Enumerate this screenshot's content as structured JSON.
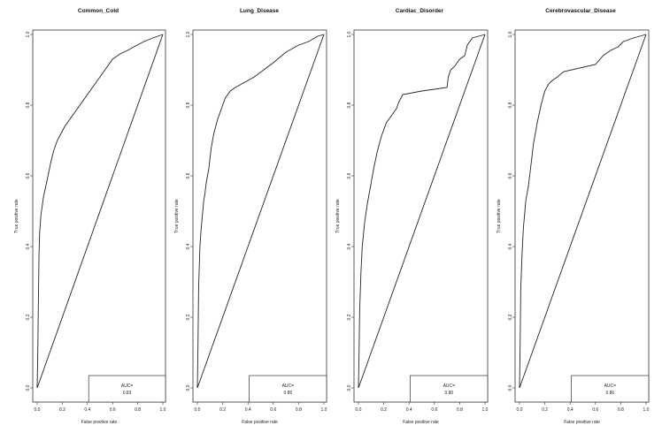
{
  "chart_data": [
    {
      "type": "line",
      "title": "Common_Cold",
      "xlabel": "False positive rate",
      "ylabel": "True positive rate",
      "xlim": [
        0,
        1
      ],
      "ylim": [
        0,
        1
      ],
      "xticks": [
        "0.0",
        "0.2",
        "0.4",
        "0.6",
        "0.8",
        "1.0"
      ],
      "yticks": [
        "0.0",
        "0.2",
        "0.4",
        "0.6",
        "0.8",
        "1.0"
      ],
      "legend": {
        "label": "AUC=",
        "value": "0.83",
        "position": "bottom-right"
      },
      "series": [
        {
          "values": [
            [
              0,
              0
            ],
            [
              0.005,
              0.1
            ],
            [
              0.01,
              0.25
            ],
            [
              0.015,
              0.38
            ],
            [
              0.02,
              0.44
            ],
            [
              0.03,
              0.49
            ],
            [
              0.05,
              0.54
            ],
            [
              0.08,
              0.59
            ],
            [
              0.11,
              0.64
            ],
            [
              0.13,
              0.67
            ],
            [
              0.16,
              0.7
            ],
            [
              0.19,
              0.72
            ],
            [
              0.22,
              0.74
            ],
            [
              0.3,
              0.78
            ],
            [
              0.4,
              0.83
            ],
            [
              0.5,
              0.88
            ],
            [
              0.6,
              0.93
            ],
            [
              0.66,
              0.945
            ],
            [
              0.72,
              0.955
            ],
            [
              0.77,
              0.965
            ],
            [
              0.85,
              0.98
            ],
            [
              0.92,
              0.99
            ],
            [
              1.0,
              1.0
            ]
          ]
        },
        {
          "values": [
            [
              0,
              0
            ],
            [
              1,
              1
            ]
          ]
        }
      ]
    },
    {
      "type": "line",
      "title": "Lung_Disease",
      "xlabel": "False positive rate",
      "ylabel": "True positive rate",
      "xlim": [
        0,
        1
      ],
      "ylim": [
        0,
        1
      ],
      "xticks": [
        "0.0",
        "0.2",
        "0.4",
        "0.6",
        "0.8",
        "1.0"
      ],
      "yticks": [
        "0.0",
        "0.2",
        "0.4",
        "0.6",
        "0.8",
        "1.0"
      ],
      "legend": {
        "label": "AUC=",
        "value": "0.85",
        "position": "bottom-right"
      },
      "series": [
        {
          "values": [
            [
              0,
              0
            ],
            [
              0.005,
              0.12
            ],
            [
              0.01,
              0.28
            ],
            [
              0.02,
              0.4
            ],
            [
              0.03,
              0.45
            ],
            [
              0.05,
              0.53
            ],
            [
              0.06,
              0.55
            ],
            [
              0.07,
              0.58
            ],
            [
              0.09,
              0.62
            ],
            [
              0.11,
              0.68
            ],
            [
              0.13,
              0.72
            ],
            [
              0.16,
              0.76
            ],
            [
              0.19,
              0.79
            ],
            [
              0.22,
              0.82
            ],
            [
              0.26,
              0.84
            ],
            [
              0.3,
              0.85
            ],
            [
              0.45,
              0.88
            ],
            [
              0.6,
              0.92
            ],
            [
              0.7,
              0.95
            ],
            [
              0.8,
              0.97
            ],
            [
              0.88,
              0.98
            ],
            [
              0.95,
              0.995
            ],
            [
              1.0,
              1.0
            ]
          ]
        },
        {
          "values": [
            [
              0,
              0
            ],
            [
              1,
              1
            ]
          ]
        }
      ]
    },
    {
      "type": "line",
      "title": "Cardiac_Disorder",
      "xlabel": "False positive rate",
      "ylabel": "True positive rate",
      "xlim": [
        0,
        1
      ],
      "ylim": [
        0,
        1
      ],
      "xticks": [
        "0.0",
        "0.2",
        "0.4",
        "0.6",
        "0.8",
        "1.0"
      ],
      "yticks": [
        "0.0",
        "0.2",
        "0.4",
        "0.6",
        "0.8",
        "1.0"
      ],
      "legend": {
        "label": "AUC=",
        "value": "0.80",
        "position": "bottom-right"
      },
      "series": [
        {
          "values": [
            [
              0,
              0
            ],
            [
              0.005,
              0.1
            ],
            [
              0.01,
              0.22
            ],
            [
              0.02,
              0.33
            ],
            [
              0.03,
              0.4
            ],
            [
              0.05,
              0.47
            ],
            [
              0.07,
              0.52
            ],
            [
              0.09,
              0.56
            ],
            [
              0.12,
              0.62
            ],
            [
              0.15,
              0.67
            ],
            [
              0.18,
              0.71
            ],
            [
              0.22,
              0.75
            ],
            [
              0.26,
              0.77
            ],
            [
              0.3,
              0.79
            ],
            [
              0.32,
              0.81
            ],
            [
              0.35,
              0.83
            ],
            [
              0.5,
              0.84
            ],
            [
              0.7,
              0.85
            ],
            [
              0.71,
              0.88
            ],
            [
              0.73,
              0.9
            ],
            [
              0.76,
              0.91
            ],
            [
              0.8,
              0.93
            ],
            [
              0.84,
              0.94
            ],
            [
              0.86,
              0.97
            ],
            [
              0.9,
              0.99
            ],
            [
              1.0,
              1.0
            ]
          ]
        },
        {
          "values": [
            [
              0,
              0
            ],
            [
              1,
              1
            ]
          ]
        }
      ]
    },
    {
      "type": "line",
      "title": "Cerebrovascular_Disease",
      "xlabel": "False positive rate",
      "ylabel": "True positive rate",
      "xlim": [
        0,
        1
      ],
      "ylim": [
        0,
        1
      ],
      "xticks": [
        "0.0",
        "0.2",
        "0.4",
        "0.6",
        "0.8",
        "1.0"
      ],
      "yticks": [
        "0.0",
        "0.2",
        "0.4",
        "0.6",
        "0.8",
        "1.0"
      ],
      "legend": {
        "label": "AUC=",
        "value": "0.86",
        "position": "bottom-right"
      },
      "series": [
        {
          "values": [
            [
              0,
              0
            ],
            [
              0.005,
              0.12
            ],
            [
              0.01,
              0.28
            ],
            [
              0.02,
              0.38
            ],
            [
              0.03,
              0.45
            ],
            [
              0.05,
              0.53
            ],
            [
              0.07,
              0.57
            ],
            [
              0.09,
              0.63
            ],
            [
              0.11,
              0.69
            ],
            [
              0.14,
              0.75
            ],
            [
              0.17,
              0.8
            ],
            [
              0.2,
              0.84
            ],
            [
              0.23,
              0.86
            ],
            [
              0.26,
              0.87
            ],
            [
              0.3,
              0.88
            ],
            [
              0.35,
              0.895
            ],
            [
              0.6,
              0.915
            ],
            [
              0.66,
              0.94
            ],
            [
              0.72,
              0.955
            ],
            [
              0.78,
              0.965
            ],
            [
              0.82,
              0.98
            ],
            [
              0.9,
              0.99
            ],
            [
              1.0,
              1.0
            ]
          ]
        },
        {
          "values": [
            [
              0,
              0
            ],
            [
              1,
              1
            ]
          ]
        }
      ]
    }
  ]
}
